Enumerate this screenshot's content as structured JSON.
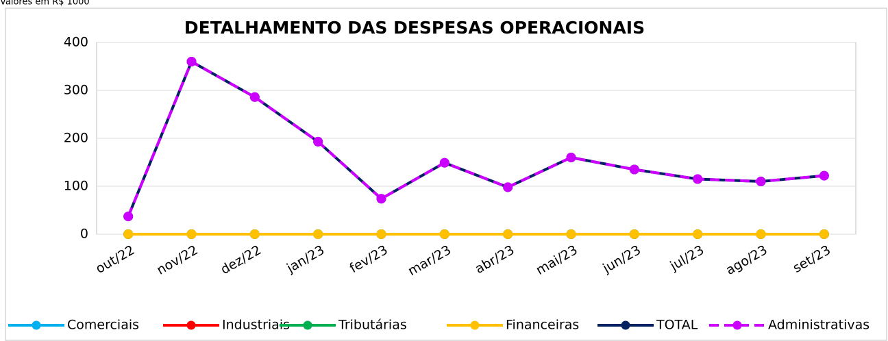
{
  "chart_data": {
    "type": "line",
    "note": "Valores em R$ 1000",
    "title": "DETALHAMENTO DAS DESPESAS OPERACIONAIS",
    "categories": [
      "out/22",
      "nov/22",
      "dez/22",
      "jan/23",
      "fev/23",
      "mar/23",
      "abr/23",
      "mai/23",
      "jun/23",
      "jul/23",
      "ago/23",
      "set/23"
    ],
    "series": [
      {
        "name": "Comerciais",
        "color": "#00b0f0",
        "values": [
          0,
          0,
          0,
          0,
          0,
          0,
          0,
          0,
          0,
          0,
          0,
          0
        ]
      },
      {
        "name": "Industriais",
        "color": "#ff0000",
        "values": [
          0,
          0,
          0,
          0,
          0,
          0,
          0,
          0,
          0,
          0,
          0,
          0
        ]
      },
      {
        "name": "Tributárias",
        "color": "#00b050",
        "values": [
          0,
          0,
          0,
          0,
          0,
          0,
          0,
          0,
          0,
          0,
          0,
          0
        ]
      },
      {
        "name": "Financeiras",
        "color": "#ffc000",
        "values": [
          0,
          0,
          0,
          0,
          0,
          0,
          0,
          0,
          0,
          0,
          0,
          0
        ]
      },
      {
        "name": "TOTAL",
        "color": "#002060",
        "values": [
          37,
          360,
          286,
          193,
          74,
          149,
          98,
          160,
          135,
          115,
          110,
          122
        ]
      },
      {
        "name": "Administrativas",
        "color": "#cc00ff",
        "dashed": true,
        "values": [
          37,
          360,
          286,
          193,
          74,
          149,
          98,
          160,
          135,
          115,
          110,
          122
        ]
      }
    ],
    "ylim": [
      0,
      400
    ],
    "yticks": [
      0,
      100,
      200,
      300,
      400
    ],
    "grid": true,
    "legend": "bottom"
  }
}
